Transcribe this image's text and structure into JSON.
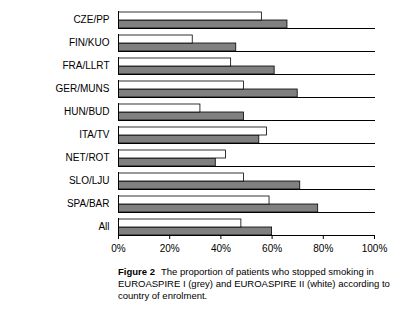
{
  "chart_data": {
    "type": "bar",
    "orientation": "horizontal",
    "title": "Figure 2",
    "subtitle": "The proportion of patients who stopped smoking in EUROASPIRE I (grey) and EUROASPIRE II (white) according to country of enrolment.",
    "categories": [
      "CZE/PP",
      "FIN/KUO",
      "FRA/LLRT",
      "GER/MUNS",
      "HUN/BUD",
      "ITA/TV",
      "NET/ROT",
      "SLO/LJU",
      "SPA/BAR",
      "All"
    ],
    "series": [
      {
        "name": "EUROASPIRE I",
        "color": "#808080",
        "values": [
          66,
          46,
          61,
          70,
          49,
          55,
          38,
          71,
          78,
          60
        ]
      },
      {
        "name": "EUROASPIRE II",
        "color": "#ffffff",
        "values": [
          56,
          29,
          44,
          49,
          32,
          58,
          42,
          49,
          59,
          48
        ]
      }
    ],
    "xlim": [
      0,
      100
    ],
    "xticks": [
      {
        "value": 0,
        "label": "0%"
      },
      {
        "value": 20,
        "label": "20%"
      },
      {
        "value": 40,
        "label": "40%"
      },
      {
        "value": 60,
        "label": "60%"
      },
      {
        "value": 80,
        "label": "80%"
      },
      {
        "value": 100,
        "label": "100%"
      }
    ],
    "grid": false
  }
}
